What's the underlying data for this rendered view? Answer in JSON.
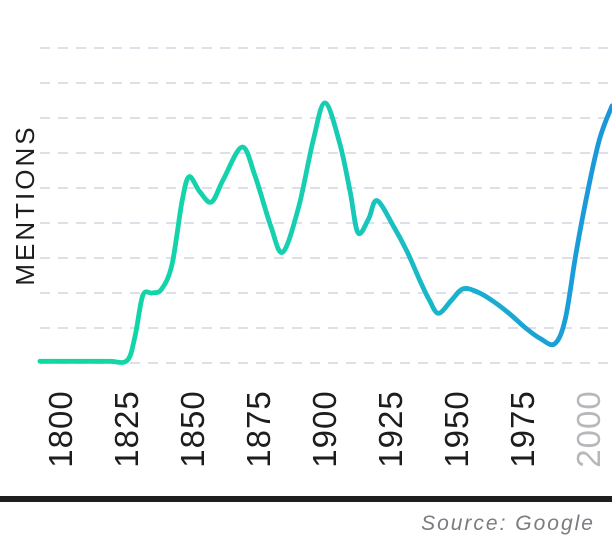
{
  "chart_data": {
    "type": "line",
    "title": "",
    "ylabel": "MENTIONS",
    "xlabel": "",
    "legend": "none",
    "x_domain": [
      1792,
      2008.7
    ],
    "y_domain": [
      0,
      9
    ],
    "x_tick_labels": [
      "1800",
      "1825",
      "1850",
      "1875",
      "1900",
      "1925",
      "1950",
      "1975",
      "2000"
    ],
    "x_tick_years": [
      1800,
      1825,
      1850,
      1875,
      1900,
      1925,
      1950,
      1975,
      2000
    ],
    "muted_tick_labels": [
      "2000"
    ],
    "grid": {
      "horizontal_lines": 10,
      "vertical_lines": 0,
      "style": "dashed"
    },
    "series": [
      {
        "name": "mentions",
        "points": [
          [
            1792,
            0.05
          ],
          [
            1806,
            0.05
          ],
          [
            1818,
            0.05
          ],
          [
            1825,
            0.07
          ],
          [
            1828,
            0.75
          ],
          [
            1831,
            1.93
          ],
          [
            1834.5,
            2.0
          ],
          [
            1838,
            2.1
          ],
          [
            1842,
            2.8
          ],
          [
            1845.8,
            4.6
          ],
          [
            1848.5,
            5.32
          ],
          [
            1852.5,
            4.9
          ],
          [
            1857,
            4.6
          ],
          [
            1861.5,
            5.25
          ],
          [
            1868.6,
            6.17
          ],
          [
            1873.5,
            5.35
          ],
          [
            1879.5,
            3.9
          ],
          [
            1884,
            3.17
          ],
          [
            1890,
            4.45
          ],
          [
            1895.5,
            6.35
          ],
          [
            1900,
            7.43
          ],
          [
            1905.5,
            6.3
          ],
          [
            1909.5,
            4.9
          ],
          [
            1912.5,
            3.72
          ],
          [
            1916.5,
            4.12
          ],
          [
            1919.7,
            4.64
          ],
          [
            1926,
            3.9
          ],
          [
            1931,
            3.2
          ],
          [
            1936,
            2.35
          ],
          [
            1939.5,
            1.8
          ],
          [
            1943,
            1.42
          ],
          [
            1948,
            1.8
          ],
          [
            1952.3,
            2.12
          ],
          [
            1958,
            2.02
          ],
          [
            1964,
            1.75
          ],
          [
            1970,
            1.4
          ],
          [
            1976,
            1.0
          ],
          [
            1981.5,
            0.7
          ],
          [
            1987,
            0.55
          ],
          [
            1991,
            1.25
          ],
          [
            1995,
            3.1
          ],
          [
            1999.5,
            4.9
          ],
          [
            2004,
            6.4
          ],
          [
            2008.7,
            7.35
          ]
        ],
        "stroke_gradient": [
          {
            "offset": 0,
            "color": "#10D9A0"
          },
          {
            "offset": 0.5,
            "color": "#17CEB2"
          },
          {
            "offset": 0.75,
            "color": "#19AFD0"
          },
          {
            "offset": 1,
            "color": "#1B96DB"
          }
        ],
        "stroke_width": 4.8
      }
    ]
  },
  "footer": {
    "source": "Source: Google"
  },
  "colors": {
    "background": "#ffffff",
    "gridline": "#dee0e9",
    "axis_label": "#1d1d1f",
    "tick_label": "#1d1d1f",
    "muted_tick_label": "#b8b8bc",
    "divider": "#1e1e1e",
    "source_text": "#7b7b81"
  }
}
